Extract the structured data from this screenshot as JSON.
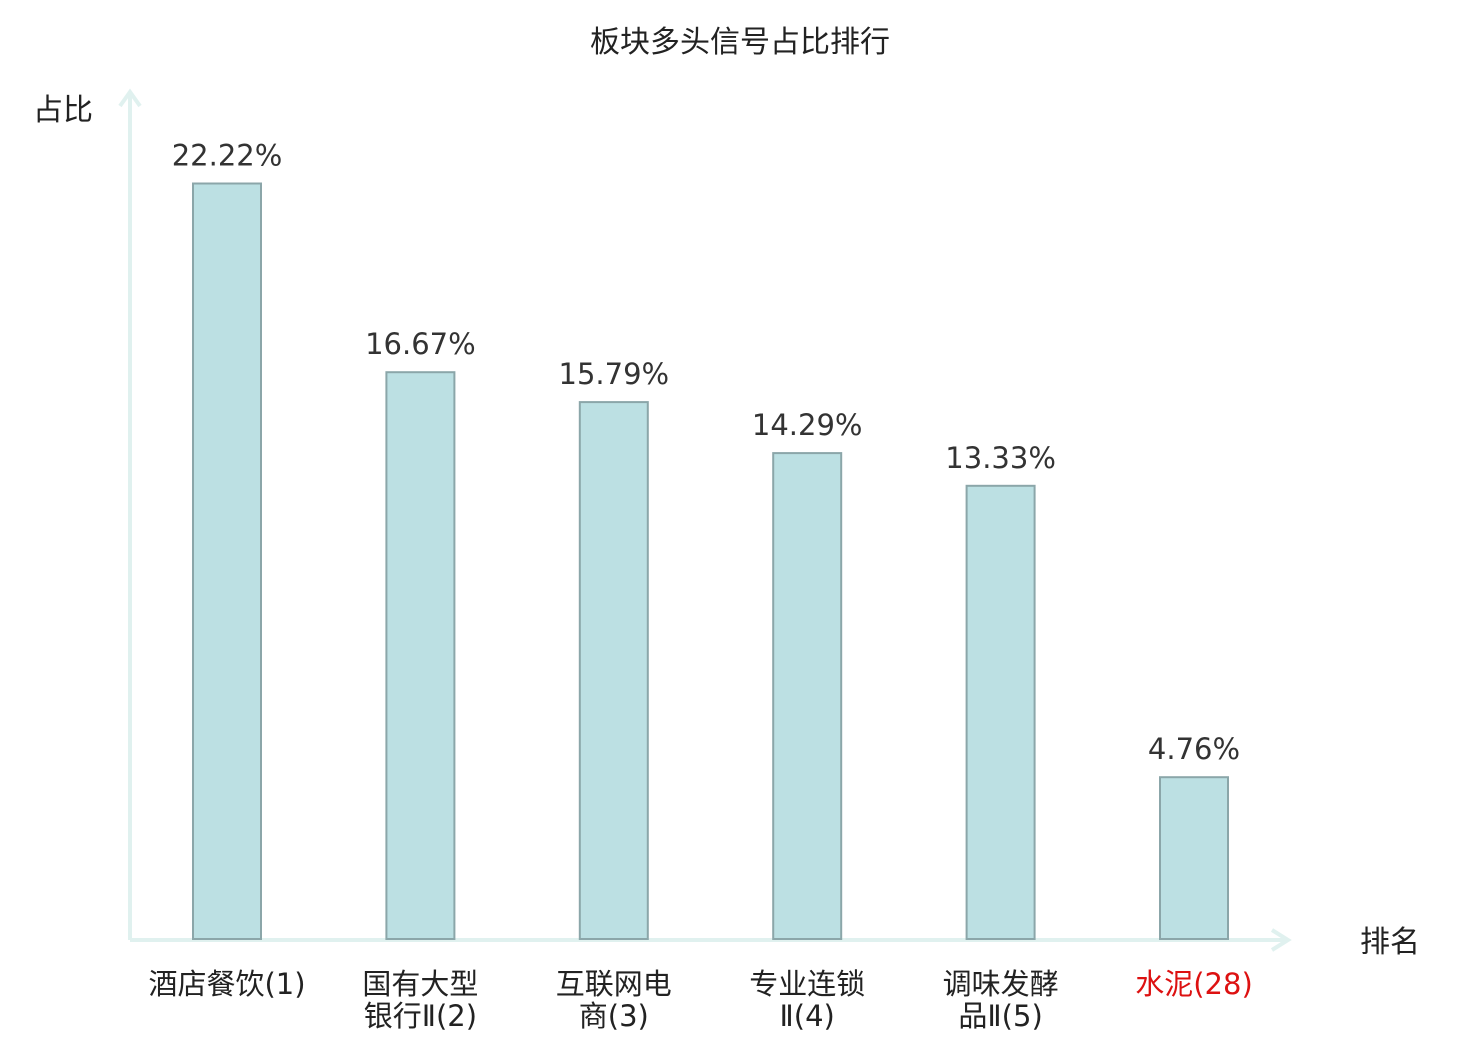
{
  "chart_data": {
    "type": "bar",
    "title": "板块多头信号占比排行",
    "ylabel": "占比",
    "xlabel": "排名",
    "ylim": [
      0,
      25
    ],
    "grid": false,
    "categories": [
      [
        "酒店餐饮(1)"
      ],
      [
        "国有大型",
        "银行Ⅱ(2)"
      ],
      [
        "互联网电",
        "商(3)"
      ],
      [
        "专业连锁",
        "Ⅱ(4)"
      ],
      [
        "调味发酵",
        "品Ⅱ(5)"
      ],
      [
        "水泥(28)"
      ]
    ],
    "values": [
      22.22,
      16.67,
      15.79,
      14.29,
      13.33,
      4.76
    ],
    "value_labels": [
      "22.22%",
      "16.67%",
      "15.79%",
      "14.29%",
      "13.33%",
      "4.76%"
    ],
    "highlight_index": 5,
    "colors": {
      "bar_fill": "#bce0e3",
      "bar_stroke": "#8ba6a9",
      "axis": "#e0f1ef",
      "highlight_text": "#dd1111"
    }
  }
}
